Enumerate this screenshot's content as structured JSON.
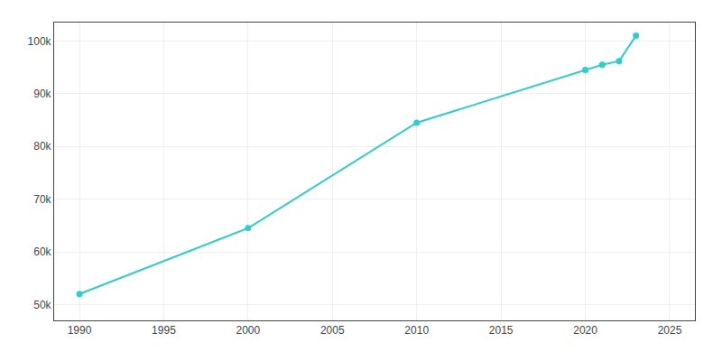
{
  "chart_data": {
    "type": "line",
    "x": [
      1990,
      2000,
      2010,
      2020,
      2021,
      2022,
      2023
    ],
    "values": [
      52000,
      64500,
      84500,
      94500,
      95500,
      96200,
      101000
    ],
    "color": "#2ECECE",
    "marker": "circle",
    "line_style": "solid",
    "xlim": [
      1988.5,
      2026.5
    ],
    "ylim": [
      47000,
      103500
    ],
    "xticks": [
      1990,
      1995,
      2000,
      2005,
      2010,
      2015,
      2020,
      2025
    ],
    "yticks": [
      {
        "value": 50000,
        "label": "50k"
      },
      {
        "value": 60000,
        "label": "60k"
      },
      {
        "value": 70000,
        "label": "70k"
      },
      {
        "value": 80000,
        "label": "80k"
      },
      {
        "value": 90000,
        "label": "90k"
      },
      {
        "value": 100000,
        "label": "100k"
      }
    ],
    "grid": true
  }
}
